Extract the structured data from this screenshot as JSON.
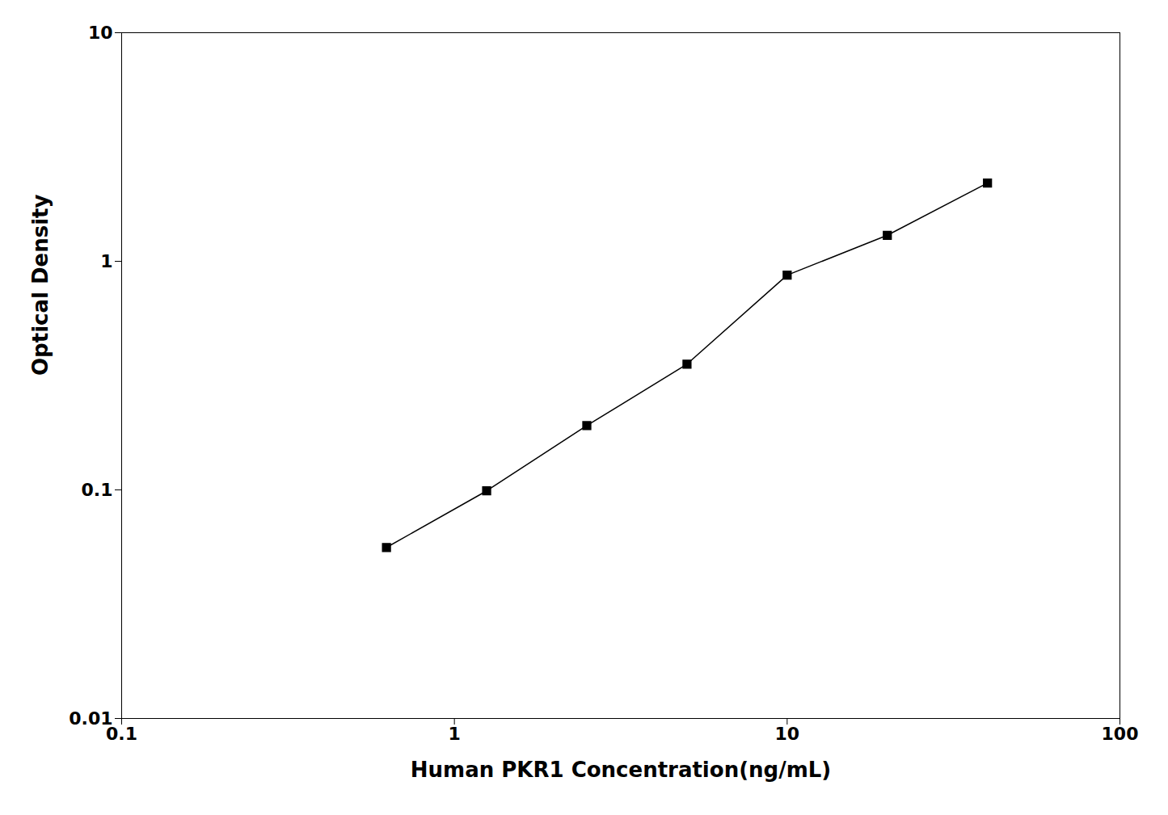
{
  "chart_data": {
    "type": "line",
    "xlabel": "Human PKR1 Concentration(ng/mL)",
    "ylabel": "Optical Density",
    "x": [
      0.625,
      1.25,
      2.5,
      5,
      10,
      20,
      40
    ],
    "values": [
      0.056,
      0.099,
      0.191,
      0.355,
      0.87,
      1.3,
      2.2
    ],
    "xlim": [
      0.1,
      100
    ],
    "ylim": [
      0.01,
      10
    ],
    "xticks": [
      0.1,
      1,
      10,
      100
    ],
    "yticks": [
      0.01,
      0.1,
      1,
      10
    ],
    "log": true,
    "color": "#000000",
    "marker": "square",
    "grid": false
  }
}
